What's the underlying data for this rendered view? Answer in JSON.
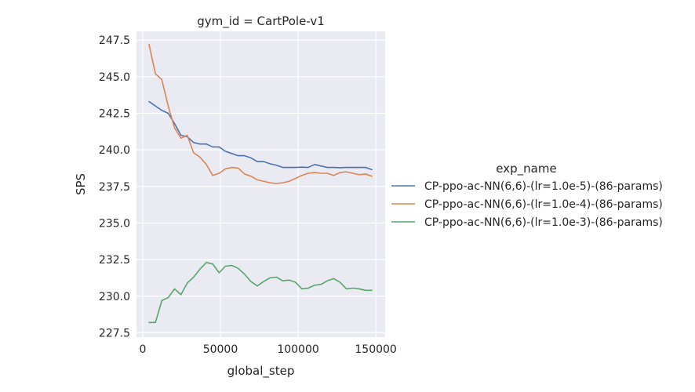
{
  "chart_data": {
    "type": "line",
    "title": "gym_id = CartPole-v1",
    "xlabel": "global_step",
    "ylabel": "SPS",
    "xlim": [
      -4000,
      156000
    ],
    "ylim": [
      227.2,
      248.1
    ],
    "xticks": [
      0,
      50000,
      100000,
      150000
    ],
    "xtick_labels": [
      "0",
      "50000",
      "100000",
      "150000"
    ],
    "yticks": [
      227.5,
      230.0,
      232.5,
      235.0,
      237.5,
      240.0,
      242.5,
      245.0,
      247.5
    ],
    "ytick_labels": [
      "227.5",
      "230.0",
      "232.5",
      "235.0",
      "237.5",
      "240.0",
      "242.5",
      "245.0",
      "247.5"
    ],
    "grid": true,
    "background": "#eaeaf2",
    "legend_title": "exp_name",
    "legend_position": "right",
    "series": [
      {
        "name": "CP-ppo-ac-NN(6,6)-(lr=1.0e-5)-(86-params)",
        "color": "#4c72b0",
        "x": [
          4096,
          8192,
          12288,
          16384,
          20480,
          24576,
          28672,
          32768,
          36864,
          40960,
          45056,
          49152,
          53248,
          57344,
          61440,
          65536,
          69632,
          73728,
          77824,
          81920,
          86016,
          90112,
          94208,
          98304,
          102400,
          106496,
          110592,
          114688,
          118784,
          122880,
          126976,
          131072,
          135168,
          139264,
          143360,
          147456
        ],
        "y": [
          243.3,
          243.0,
          242.7,
          242.5,
          241.8,
          241.0,
          240.9,
          240.5,
          240.4,
          240.4,
          240.2,
          240.2,
          239.9,
          239.75,
          239.6,
          239.6,
          239.45,
          239.2,
          239.2,
          239.05,
          238.95,
          238.8,
          238.8,
          238.8,
          238.82,
          238.8,
          239.0,
          238.9,
          238.8,
          238.8,
          238.78,
          238.8,
          238.8,
          238.8,
          238.8,
          238.65
        ]
      },
      {
        "name": "CP-ppo-ac-NN(6,6)-(lr=1.0e-4)-(86-params)",
        "color": "#dd8452",
        "x": [
          4096,
          8192,
          12288,
          16384,
          20480,
          24576,
          28672,
          32768,
          36864,
          40960,
          45056,
          49152,
          53248,
          57344,
          61440,
          65536,
          69632,
          73728,
          77824,
          81920,
          86016,
          90112,
          94208,
          98304,
          102400,
          106496,
          110592,
          114688,
          118784,
          122880,
          126976,
          131072,
          135168,
          139264,
          143360,
          147456
        ],
        "y": [
          247.2,
          245.2,
          244.8,
          243.0,
          241.5,
          240.8,
          241.0,
          239.8,
          239.5,
          239.0,
          238.25,
          238.4,
          238.7,
          238.8,
          238.75,
          238.35,
          238.2,
          237.95,
          237.85,
          237.75,
          237.7,
          237.75,
          237.85,
          238.05,
          238.25,
          238.4,
          238.45,
          238.4,
          238.4,
          238.25,
          238.45,
          238.5,
          238.4,
          238.3,
          238.35,
          238.2
        ]
      },
      {
        "name": "CP-ppo-ac-NN(6,6)-(lr=1.0e-3)-(86-params)",
        "color": "#55a868",
        "x": [
          4096,
          8192,
          12288,
          16384,
          20480,
          24576,
          28672,
          32768,
          36864,
          40960,
          45056,
          49152,
          53248,
          57344,
          61440,
          65536,
          69632,
          73728,
          77824,
          81920,
          86016,
          90112,
          94208,
          98304,
          102400,
          106496,
          110592,
          114688,
          118784,
          122880,
          126976,
          131072,
          135168,
          139264,
          143360,
          147456
        ],
        "y": [
          228.2,
          228.2,
          229.7,
          229.9,
          230.5,
          230.1,
          230.9,
          231.3,
          231.85,
          232.3,
          232.2,
          231.6,
          232.05,
          232.1,
          231.9,
          231.5,
          231.0,
          230.7,
          231.0,
          231.25,
          231.3,
          231.05,
          231.1,
          230.95,
          230.5,
          230.55,
          230.75,
          230.8,
          231.05,
          231.2,
          230.95,
          230.5,
          230.55,
          230.5,
          230.4,
          230.4
        ]
      }
    ]
  }
}
